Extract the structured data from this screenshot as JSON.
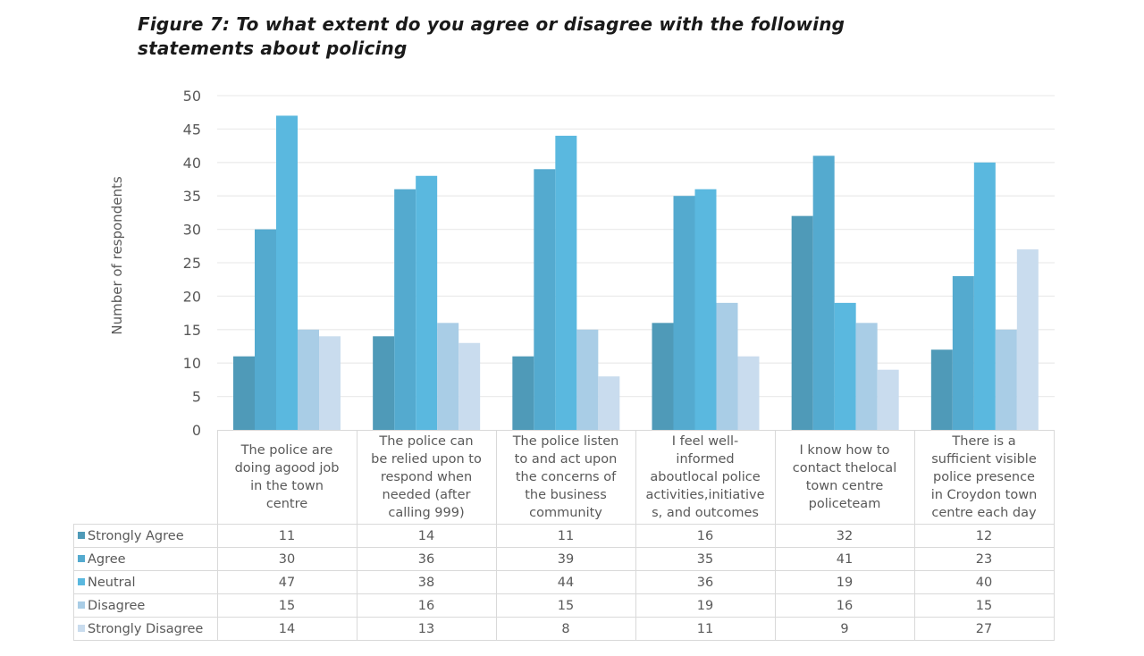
{
  "chart_data": {
    "type": "bar",
    "title": "Figure 7: To what extent do you agree or disagree with the following statements about policing",
    "xlabel": "",
    "ylabel": "Number of respondents",
    "ylim": [
      0,
      50
    ],
    "yticks": [
      0,
      5,
      10,
      15,
      20,
      25,
      30,
      35,
      40,
      45,
      50
    ],
    "grid": true,
    "legend": "data-table-below",
    "categories": [
      "The police are doing agood job in the town centre",
      "The police can be relied upon to respond when needed (after calling 999)",
      "The police listen to and act upon the concerns of the business community",
      "I feel well-informed aboutlocal police activities,initiatives, and outcomes",
      "I know how to contact thelocal town centre policeteam",
      "There is a sufficient visible police presence in Croydon town centre each day"
    ],
    "series": [
      {
        "name": "Strongly Agree",
        "color": "#4f9ab8",
        "values": [
          11,
          14,
          11,
          16,
          32,
          12
        ]
      },
      {
        "name": "Agree",
        "color": "#54aacf",
        "values": [
          30,
          36,
          39,
          35,
          41,
          23
        ]
      },
      {
        "name": "Neutral",
        "color": "#5ab8df",
        "values": [
          47,
          38,
          44,
          36,
          19,
          40
        ]
      },
      {
        "name": "Disagree",
        "color": "#a9cde6",
        "values": [
          15,
          16,
          15,
          19,
          16,
          15
        ]
      },
      {
        "name": "Strongly Disagree",
        "color": "#c9dcee",
        "values": [
          14,
          13,
          8,
          11,
          9,
          27
        ]
      }
    ]
  },
  "table_header_lines": [
    [
      "The police are",
      "doing agood job",
      "in the town",
      "centre"
    ],
    [
      "The police can",
      "be relied upon to",
      "respond when",
      "needed (after",
      "calling 999)"
    ],
    [
      "The police listen",
      "to and act upon",
      "the concerns of",
      "the business",
      "community"
    ],
    [
      "I feel well-",
      "informed",
      "aboutlocal police",
      "activities,initiative",
      "s, and outcomes"
    ],
    [
      "I know how to",
      "contact thelocal",
      "town centre",
      "policeteam"
    ],
    [
      "There is a",
      "sufficient visible",
      "police presence",
      "in Croydon town",
      "centre each day"
    ]
  ]
}
